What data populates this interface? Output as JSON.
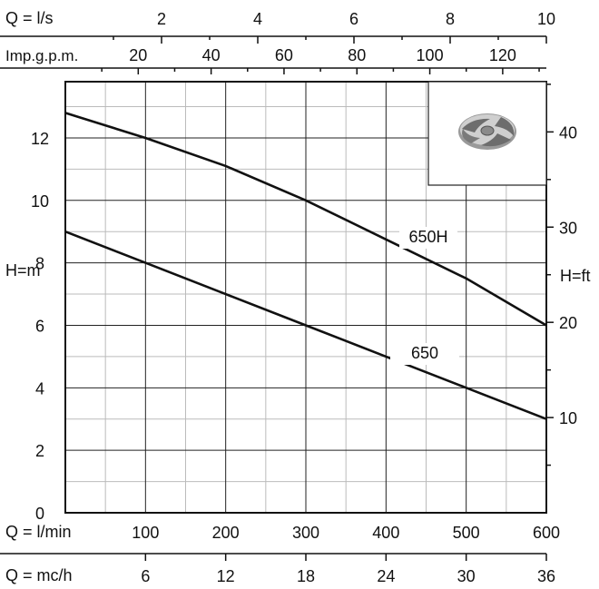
{
  "chart_data": {
    "type": "line",
    "axes": {
      "top_ls": {
        "label": "Q = l/s",
        "ticks": [
          "2",
          "4",
          "6",
          "8",
          "10"
        ],
        "values": [
          2,
          4,
          6,
          8,
          10
        ]
      },
      "top_imp": {
        "label": "Imp.g.p.m.",
        "ticks": [
          "20",
          "40",
          "60",
          "80",
          "100",
          "120"
        ],
        "values": [
          20,
          40,
          60,
          80,
          100,
          120
        ]
      },
      "bottom_lmin": {
        "label": "Q = l/min",
        "ticks": [
          "100",
          "200",
          "300",
          "400",
          "500",
          "600"
        ],
        "values": [
          100,
          200,
          300,
          400,
          500,
          600
        ]
      },
      "bottom_mch": {
        "label": "Q = mc/h",
        "ticks": [
          "6",
          "12",
          "18",
          "24",
          "30",
          "36"
        ],
        "values": [
          6,
          12,
          18,
          24,
          30,
          36
        ]
      },
      "left_m": {
        "label": "H=m",
        "ticks": [
          "0",
          "2",
          "4",
          "6",
          "8",
          "10",
          "12"
        ],
        "values": [
          0,
          2,
          4,
          6,
          8,
          10,
          12
        ]
      },
      "right_ft": {
        "label": "H=ft",
        "ticks": [
          "10",
          "20",
          "30",
          "40"
        ],
        "values": [
          10,
          20,
          30,
          40
        ]
      }
    },
    "x_unit": "l/min",
    "y_unit": "m",
    "xlim": [
      0,
      600
    ],
    "ylim": [
      0,
      13.8
    ],
    "grid": true,
    "series": [
      {
        "name": "650H",
        "x": [
          0,
          100,
          200,
          300,
          400,
          500,
          600
        ],
        "values": [
          12.8,
          12.0,
          11.1,
          10.0,
          8.75,
          7.5,
          6.0
        ]
      },
      {
        "name": "650",
        "x": [
          0,
          100,
          200,
          300,
          400,
          500,
          600
        ],
        "values": [
          9.0,
          8.0,
          7.0,
          6.0,
          5.0,
          4.0,
          3.0
        ]
      }
    ]
  },
  "inset_image": {
    "name": "impeller-image"
  }
}
